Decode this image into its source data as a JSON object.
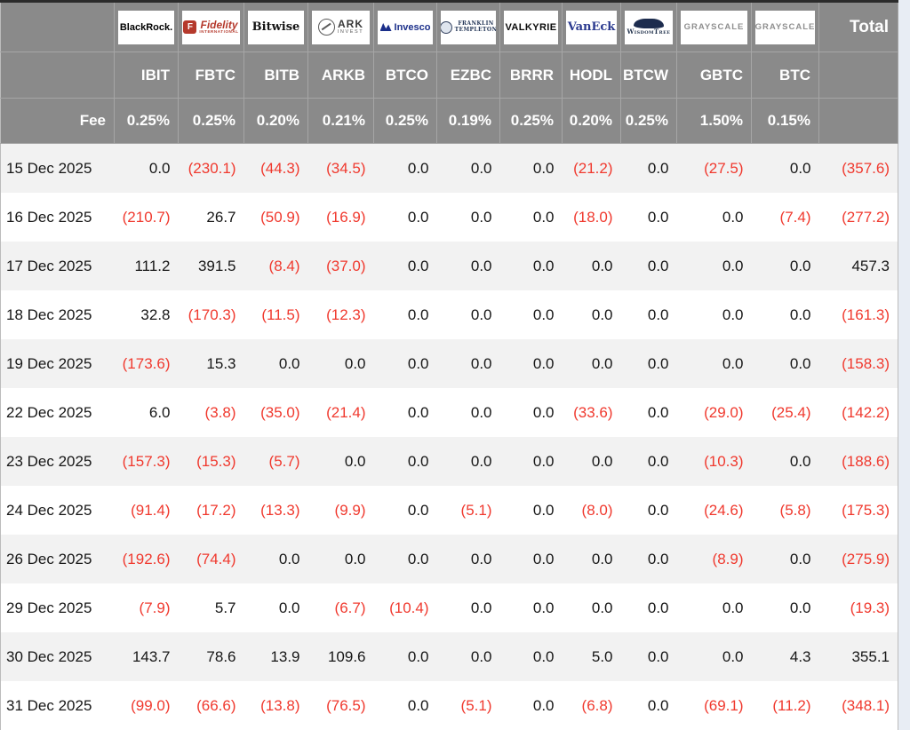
{
  "table": {
    "fee_label": "Fee",
    "total_label": "Total",
    "columns": [
      {
        "ticker": "IBIT",
        "fee": "0.25%",
        "provider": "BlackRock",
        "logo": "blackrock",
        "logo_text": "BlackRock."
      },
      {
        "ticker": "FBTC",
        "fee": "0.25%",
        "provider": "Fidelity International",
        "logo": "fidelity",
        "logo_icon_letter": "F",
        "logo_text": "Fidelity",
        "logo_sub": "INTERNATIONAL"
      },
      {
        "ticker": "BITB",
        "fee": "0.20%",
        "provider": "Bitwise",
        "logo": "bitwise",
        "logo_text": "Bitwise"
      },
      {
        "ticker": "ARKB",
        "fee": "0.21%",
        "provider": "ARK Invest",
        "logo": "ark",
        "logo_text": "ARK",
        "logo_sub": "INVEST"
      },
      {
        "ticker": "BTCO",
        "fee": "0.25%",
        "provider": "Invesco",
        "logo": "invesco",
        "logo_text": "Invesco"
      },
      {
        "ticker": "EZBC",
        "fee": "0.19%",
        "provider": "Franklin Templeton",
        "logo": "franklin",
        "logo_text": "FRANKLIN",
        "logo_sub": "TEMPLETON"
      },
      {
        "ticker": "BRRR",
        "fee": "0.25%",
        "provider": "Valkyrie",
        "logo": "valkyrie",
        "logo_text": "VALKYRIE"
      },
      {
        "ticker": "HODL",
        "fee": "0.20%",
        "provider": "VanEck",
        "logo": "vaneck",
        "logo_text": "VanEck"
      },
      {
        "ticker": "BTCW",
        "fee": "0.25%",
        "provider": "WisdomTree",
        "logo": "wisdomtree",
        "logo_text": "WisdomTree"
      },
      {
        "ticker": "GBTC",
        "fee": "1.50%",
        "provider": "Grayscale",
        "logo": "grayscale",
        "logo_text": "GRAYSCALE"
      },
      {
        "ticker": "BTC",
        "fee": "0.15%",
        "provider": "Grayscale",
        "logo": "grayscale",
        "logo_text": "GRAYSCALE"
      }
    ],
    "rows": [
      {
        "date": "15 Dec 2025",
        "values": [
          "0.0",
          "(230.1)",
          "(44.3)",
          "(34.5)",
          "0.0",
          "0.0",
          "0.0",
          "(21.2)",
          "0.0",
          "(27.5)",
          "0.0"
        ],
        "total": "(357.6)"
      },
      {
        "date": "16 Dec 2025",
        "values": [
          "(210.7)",
          "26.7",
          "(50.9)",
          "(16.9)",
          "0.0",
          "0.0",
          "0.0",
          "(18.0)",
          "0.0",
          "0.0",
          "(7.4)"
        ],
        "total": "(277.2)"
      },
      {
        "date": "17 Dec 2025",
        "values": [
          "111.2",
          "391.5",
          "(8.4)",
          "(37.0)",
          "0.0",
          "0.0",
          "0.0",
          "0.0",
          "0.0",
          "0.0",
          "0.0"
        ],
        "total": "457.3"
      },
      {
        "date": "18 Dec 2025",
        "values": [
          "32.8",
          "(170.3)",
          "(11.5)",
          "(12.3)",
          "0.0",
          "0.0",
          "0.0",
          "0.0",
          "0.0",
          "0.0",
          "0.0"
        ],
        "total": "(161.3)"
      },
      {
        "date": "19 Dec 2025",
        "values": [
          "(173.6)",
          "15.3",
          "0.0",
          "0.0",
          "0.0",
          "0.0",
          "0.0",
          "0.0",
          "0.0",
          "0.0",
          "0.0"
        ],
        "total": "(158.3)"
      },
      {
        "date": "22 Dec 2025",
        "values": [
          "6.0",
          "(3.8)",
          "(35.0)",
          "(21.4)",
          "0.0",
          "0.0",
          "0.0",
          "(33.6)",
          "0.0",
          "(29.0)",
          "(25.4)"
        ],
        "total": "(142.2)"
      },
      {
        "date": "23 Dec 2025",
        "values": [
          "(157.3)",
          "(15.3)",
          "(5.7)",
          "0.0",
          "0.0",
          "0.0",
          "0.0",
          "0.0",
          "0.0",
          "(10.3)",
          "0.0"
        ],
        "total": "(188.6)"
      },
      {
        "date": "24 Dec 2025",
        "values": [
          "(91.4)",
          "(17.2)",
          "(13.3)",
          "(9.9)",
          "0.0",
          "(5.1)",
          "0.0",
          "(8.0)",
          "0.0",
          "(24.6)",
          "(5.8)"
        ],
        "total": "(175.3)"
      },
      {
        "date": "26 Dec 2025",
        "values": [
          "(192.6)",
          "(74.4)",
          "0.0",
          "0.0",
          "0.0",
          "0.0",
          "0.0",
          "0.0",
          "0.0",
          "(8.9)",
          "0.0"
        ],
        "total": "(275.9)"
      },
      {
        "date": "29 Dec 2025",
        "values": [
          "(7.9)",
          "5.7",
          "0.0",
          "(6.7)",
          "(10.4)",
          "0.0",
          "0.0",
          "0.0",
          "0.0",
          "0.0",
          "0.0"
        ],
        "total": "(19.3)"
      },
      {
        "date": "30 Dec 2025",
        "values": [
          "143.7",
          "78.6",
          "13.9",
          "109.6",
          "0.0",
          "0.0",
          "0.0",
          "5.0",
          "0.0",
          "0.0",
          "4.3"
        ],
        "total": "355.1"
      },
      {
        "date": "31 Dec 2025",
        "values": [
          "(99.0)",
          "(66.6)",
          "(13.8)",
          "(76.5)",
          "0.0",
          "(5.1)",
          "0.0",
          "(6.8)",
          "0.0",
          "(69.1)",
          "(11.2)"
        ],
        "total": "(348.1)"
      }
    ]
  },
  "colors": {
    "negative_red": "#f0392e",
    "header_gray": "#8a8a8a",
    "row_stripe": "#f2f2f2",
    "page_background": "#e8edf4"
  },
  "chart_data": {
    "type": "table",
    "columns": [
      "IBIT",
      "FBTC",
      "BITB",
      "ARKB",
      "BTCO",
      "EZBC",
      "BRRR",
      "HODL",
      "BTCW",
      "GBTC",
      "BTC",
      "Total"
    ],
    "fees_pct": [
      0.25,
      0.25,
      0.2,
      0.21,
      0.25,
      0.19,
      0.25,
      0.2,
      0.25,
      1.5,
      0.15,
      null
    ],
    "row_labels": [
      "15 Dec 2025",
      "16 Dec 2025",
      "17 Dec 2025",
      "18 Dec 2025",
      "19 Dec 2025",
      "22 Dec 2025",
      "23 Dec 2025",
      "24 Dec 2025",
      "26 Dec 2025",
      "29 Dec 2025",
      "30 Dec 2025",
      "31 Dec 2025"
    ],
    "values": [
      [
        0.0,
        -230.1,
        -44.3,
        -34.5,
        0.0,
        0.0,
        0.0,
        -21.2,
        0.0,
        -27.5,
        0.0,
        -357.6
      ],
      [
        -210.7,
        26.7,
        -50.9,
        -16.9,
        0.0,
        0.0,
        0.0,
        -18.0,
        0.0,
        0.0,
        -7.4,
        -277.2
      ],
      [
        111.2,
        391.5,
        -8.4,
        -37.0,
        0.0,
        0.0,
        0.0,
        0.0,
        0.0,
        0.0,
        0.0,
        457.3
      ],
      [
        32.8,
        -170.3,
        -11.5,
        -12.3,
        0.0,
        0.0,
        0.0,
        0.0,
        0.0,
        0.0,
        0.0,
        -161.3
      ],
      [
        -173.6,
        15.3,
        0.0,
        0.0,
        0.0,
        0.0,
        0.0,
        0.0,
        0.0,
        0.0,
        0.0,
        -158.3
      ],
      [
        6.0,
        -3.8,
        -35.0,
        -21.4,
        0.0,
        0.0,
        0.0,
        -33.6,
        0.0,
        -29.0,
        -25.4,
        -142.2
      ],
      [
        -157.3,
        -15.3,
        -5.7,
        0.0,
        0.0,
        0.0,
        0.0,
        0.0,
        0.0,
        -10.3,
        0.0,
        -188.6
      ],
      [
        -91.4,
        -17.2,
        -13.3,
        -9.9,
        0.0,
        -5.1,
        0.0,
        -8.0,
        0.0,
        -24.6,
        -5.8,
        -175.3
      ],
      [
        -192.6,
        -74.4,
        0.0,
        0.0,
        0.0,
        0.0,
        0.0,
        0.0,
        0.0,
        -8.9,
        0.0,
        -275.9
      ],
      [
        -7.9,
        5.7,
        0.0,
        -6.7,
        -10.4,
        0.0,
        0.0,
        0.0,
        0.0,
        0.0,
        0.0,
        -19.3
      ],
      [
        143.7,
        78.6,
        13.9,
        109.6,
        0.0,
        0.0,
        0.0,
        5.0,
        0.0,
        0.0,
        4.3,
        355.1
      ],
      [
        -99.0,
        -66.6,
        -13.8,
        -76.5,
        0.0,
        -5.1,
        0.0,
        -6.8,
        0.0,
        -69.1,
        -11.2,
        -348.1
      ]
    ],
    "notes": "Values in parentheses rendered red (outflows); plain values black."
  }
}
